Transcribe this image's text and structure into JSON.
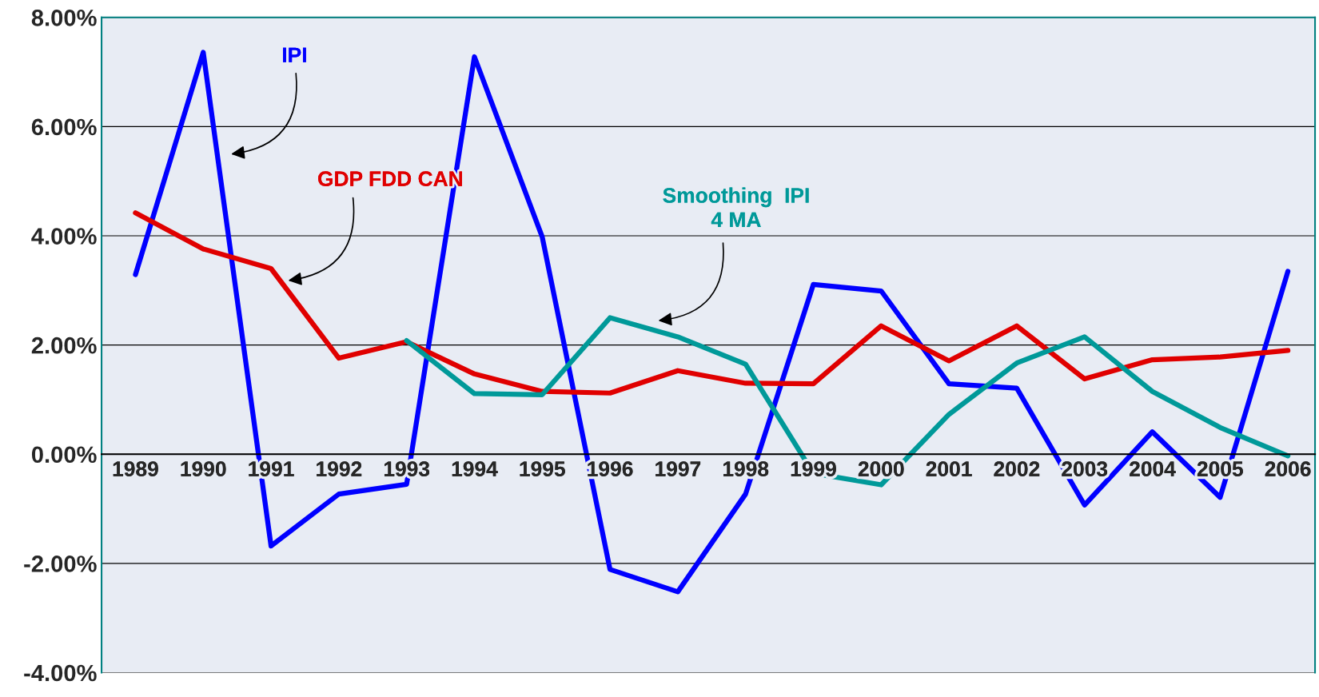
{
  "chart_data": {
    "type": "line",
    "categories": [
      "1989",
      "1990",
      "1991",
      "1992",
      "1993",
      "1994",
      "1995",
      "1996",
      "1997",
      "1998",
      "1999",
      "2000",
      "2001",
      "2002",
      "2003",
      "2004",
      "2005",
      "2006"
    ],
    "series": [
      {
        "name": "IPI",
        "color": "#0000ff",
        "values": [
          3.29,
          7.36,
          -1.68,
          -0.73,
          -0.55,
          7.28,
          3.98,
          -2.11,
          -2.52,
          -0.73,
          3.11,
          2.99,
          1.29,
          1.21,
          -0.93,
          0.41,
          -0.79,
          3.35
        ]
      },
      {
        "name": "GDP FDD CAN",
        "color": "#e00000",
        "values": [
          4.42,
          3.76,
          3.4,
          1.76,
          2.06,
          1.47,
          1.15,
          1.12,
          1.53,
          1.3,
          1.29,
          2.35,
          1.71,
          2.35,
          1.38,
          1.73,
          1.78,
          1.9
        ]
      },
      {
        "name": "Smoothing  IPI\n4 MA",
        "color": "#009999",
        "values": [
          null,
          null,
          null,
          null,
          2.08,
          1.11,
          1.09,
          2.5,
          2.15,
          1.65,
          -0.35,
          -0.56,
          0.73,
          1.67,
          2.15,
          1.15,
          0.49,
          -0.03
        ]
      }
    ],
    "ylim": [
      -4,
      8
    ],
    "yticks": [
      {
        "value": -4,
        "label": "-4.00%"
      },
      {
        "value": -2,
        "label": "-2.00%"
      },
      {
        "value": 0,
        "label": "0.00%"
      },
      {
        "value": 2,
        "label": "2.00%"
      },
      {
        "value": 4,
        "label": "4.00%"
      },
      {
        "value": 6,
        "label": "6.00%"
      },
      {
        "value": 8,
        "label": "8.00%"
      }
    ],
    "grid": "y",
    "legend": false,
    "marker": "none",
    "line_style": "solid"
  }
}
